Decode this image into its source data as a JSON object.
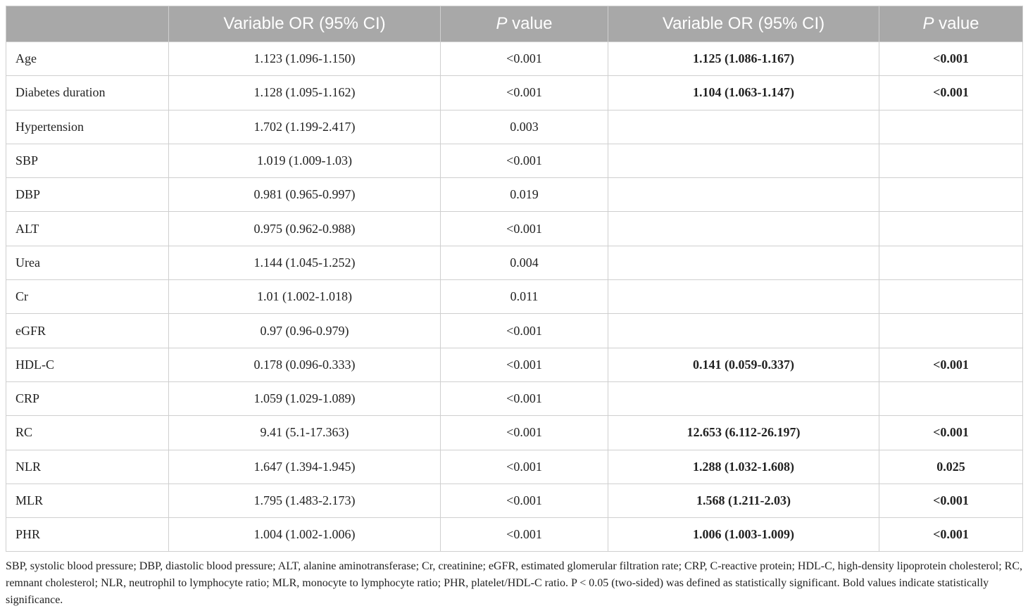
{
  "table": {
    "headers": [
      "",
      "Variable OR (95% CI)",
      "P value",
      "Variable OR (95% CI)",
      "P value"
    ],
    "header_italic_part": "P",
    "header_rest_part": " value",
    "rows": [
      {
        "variable": "Age",
        "or1": "1.123 (1.096-1.150)",
        "p1": "<0.001",
        "or2": "1.125 (1.086-1.167)",
        "p2": "<0.001",
        "bold2": true
      },
      {
        "variable": "Diabetes duration",
        "or1": "1.128 (1.095-1.162)",
        "p1": "<0.001",
        "or2": "1.104 (1.063-1.147)",
        "p2": "<0.001",
        "bold2": true
      },
      {
        "variable": "Hypertension",
        "or1": "1.702 (1.199-2.417)",
        "p1": "0.003",
        "or2": "",
        "p2": "",
        "bold2": false
      },
      {
        "variable": "SBP",
        "or1": "1.019 (1.009-1.03)",
        "p1": "<0.001",
        "or2": "",
        "p2": "",
        "bold2": false
      },
      {
        "variable": "DBP",
        "or1": "0.981 (0.965-0.997)",
        "p1": "0.019",
        "or2": "",
        "p2": "",
        "bold2": false
      },
      {
        "variable": "ALT",
        "or1": "0.975 (0.962-0.988)",
        "p1": "<0.001",
        "or2": "",
        "p2": "",
        "bold2": false
      },
      {
        "variable": "Urea",
        "or1": "1.144 (1.045-1.252)",
        "p1": "0.004",
        "or2": "",
        "p2": "",
        "bold2": false
      },
      {
        "variable": "Cr",
        "or1": "1.01 (1.002-1.018)",
        "p1": "0.011",
        "or2": "",
        "p2": "",
        "bold2": false
      },
      {
        "variable": "eGFR",
        "or1": "0.97 (0.96-0.979)",
        "p1": "<0.001",
        "or2": "",
        "p2": "",
        "bold2": false
      },
      {
        "variable": "HDL-C",
        "or1": "0.178 (0.096-0.333)",
        "p1": "<0.001",
        "or2": "0.141 (0.059-0.337)",
        "p2": "<0.001",
        "bold2": true
      },
      {
        "variable": "CRP",
        "or1": "1.059 (1.029-1.089)",
        "p1": "<0.001",
        "or2": "",
        "p2": "",
        "bold2": false
      },
      {
        "variable": "RC",
        "or1": "9.41 (5.1-17.363)",
        "p1": "<0.001",
        "or2": "12.653 (6.112-26.197)",
        "p2": "<0.001",
        "bold2": true
      },
      {
        "variable": "NLR",
        "or1": "1.647 (1.394-1.945)",
        "p1": "<0.001",
        "or2": "1.288 (1.032-1.608)",
        "p2": "0.025",
        "bold2": true
      },
      {
        "variable": "MLR",
        "or1": "1.795 (1.483-2.173)",
        "p1": "<0.001",
        "or2": "1.568 (1.211-2.03)",
        "p2": "<0.001",
        "bold2": true
      },
      {
        "variable": "PHR",
        "or1": "1.004 (1.002-1.006)",
        "p1": "<0.001",
        "or2": "1.006 (1.003-1.009)",
        "p2": "<0.001",
        "bold2": true
      }
    ]
  },
  "footnote": "SBP, systolic blood pressure; DBP, diastolic blood pressure; ALT, alanine aminotransferase; Cr, creatinine; eGFR, estimated glomerular filtration rate; CRP, C-reactive protein; HDL-C, high-density lipoprotein cholesterol; RC, remnant cholesterol; NLR, neutrophil to lymphocyte ratio; MLR, monocyte to lymphocyte ratio; PHR, platelet/HDL-C ratio. P < 0.05 (two-sided) was defined as statistically significant. Bold values indicate statistically significance.",
  "colors": {
    "header_bg": "#a8a8a8",
    "header_text": "#ffffff",
    "border": "#cfcfcf"
  }
}
